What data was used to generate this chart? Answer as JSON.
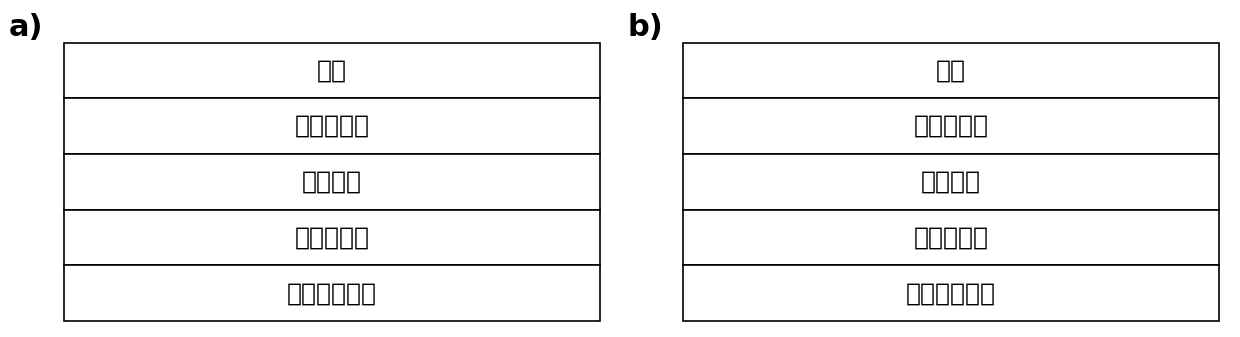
{
  "panel_a_label": "a)",
  "panel_b_label": "b)",
  "panel_a_layers": [
    "电极",
    "电子传输层",
    "钙钛矿层",
    "空穴传输层",
    "透明导电衬底"
  ],
  "panel_b_layers": [
    "电极",
    "空穴传输层",
    "钙钛矿层",
    "电子传输层",
    "透明导电衬底"
  ],
  "bg_color": "#ffffff",
  "box_facecolor": "#ffffff",
  "box_edgecolor": "#000000",
  "text_color": "#000000",
  "label_fontsize": 22,
  "layer_fontsize": 18,
  "label_fontweight": "bold"
}
